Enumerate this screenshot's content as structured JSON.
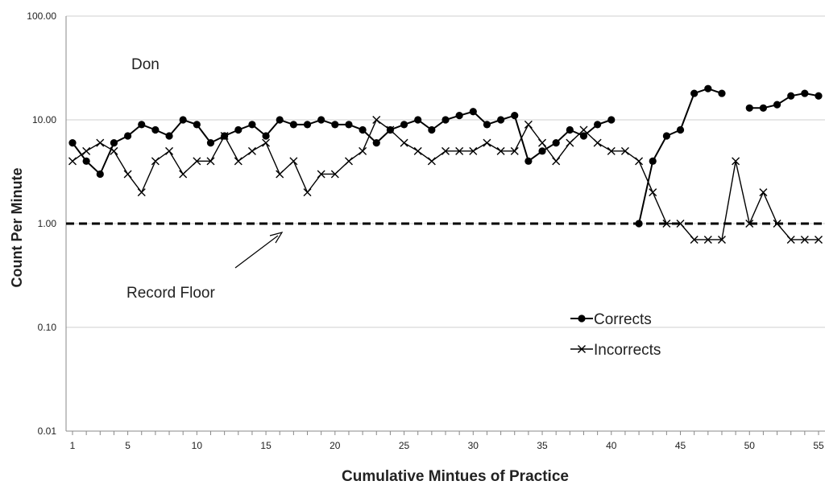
{
  "chart_data": {
    "type": "line",
    "y_scale": "log",
    "ylim": [
      0.01,
      100
    ],
    "xlim": [
      1,
      55
    ],
    "ylabel": "Count Per Minute",
    "xlabel": "Cumulative Mintues of Practice",
    "y_ticks": [
      "0.01",
      "0.10",
      "1.00",
      "10.00",
      "100.00"
    ],
    "x_ticks": [
      1,
      5,
      10,
      15,
      20,
      25,
      30,
      35,
      40,
      45,
      50,
      55
    ],
    "grid": "horizontal",
    "legend_position": "bottom-right",
    "annotations": {
      "label": "Don",
      "record_floor": "Record Floor",
      "record_floor_value": 1
    },
    "x": [
      1,
      2,
      3,
      4,
      5,
      6,
      7,
      8,
      9,
      10,
      11,
      12,
      13,
      14,
      15,
      16,
      17,
      18,
      19,
      20,
      21,
      22,
      23,
      24,
      25,
      26,
      27,
      28,
      29,
      30,
      31,
      32,
      33,
      34,
      35,
      36,
      37,
      38,
      39,
      40,
      41,
      42,
      43,
      44,
      45,
      46,
      47,
      48,
      49,
      50,
      51,
      52,
      53,
      54,
      55
    ],
    "series": [
      {
        "name": "Corrects",
        "marker": "circle",
        "color": "#000000",
        "values": [
          6,
          4,
          3,
          6,
          7,
          9,
          8,
          7,
          10,
          9,
          6,
          7,
          8,
          9,
          7,
          10,
          9,
          9,
          10,
          9,
          9,
          8,
          6,
          8,
          9,
          10,
          8,
          10,
          11,
          12,
          9,
          10,
          11,
          4,
          5,
          6,
          8,
          7,
          9,
          10,
          null,
          1,
          4,
          7,
          8,
          18,
          20,
          18,
          null,
          13,
          13,
          14,
          17,
          18,
          17
        ]
      },
      {
        "name": "Incorrects",
        "marker": "x",
        "color": "#000000",
        "values": [
          4,
          5,
          6,
          5,
          3,
          2,
          4,
          5,
          3,
          4,
          4,
          7,
          4,
          5,
          6,
          3,
          4,
          2,
          3,
          3,
          4,
          5,
          10,
          8,
          6,
          5,
          4,
          5,
          5,
          5,
          6,
          5,
          5,
          9,
          6,
          4,
          6,
          8,
          6,
          5,
          5,
          4,
          2,
          1,
          1,
          0.7,
          0.7,
          0.7,
          4,
          1,
          2,
          1,
          0.7,
          0.7,
          0.7
        ]
      }
    ]
  }
}
